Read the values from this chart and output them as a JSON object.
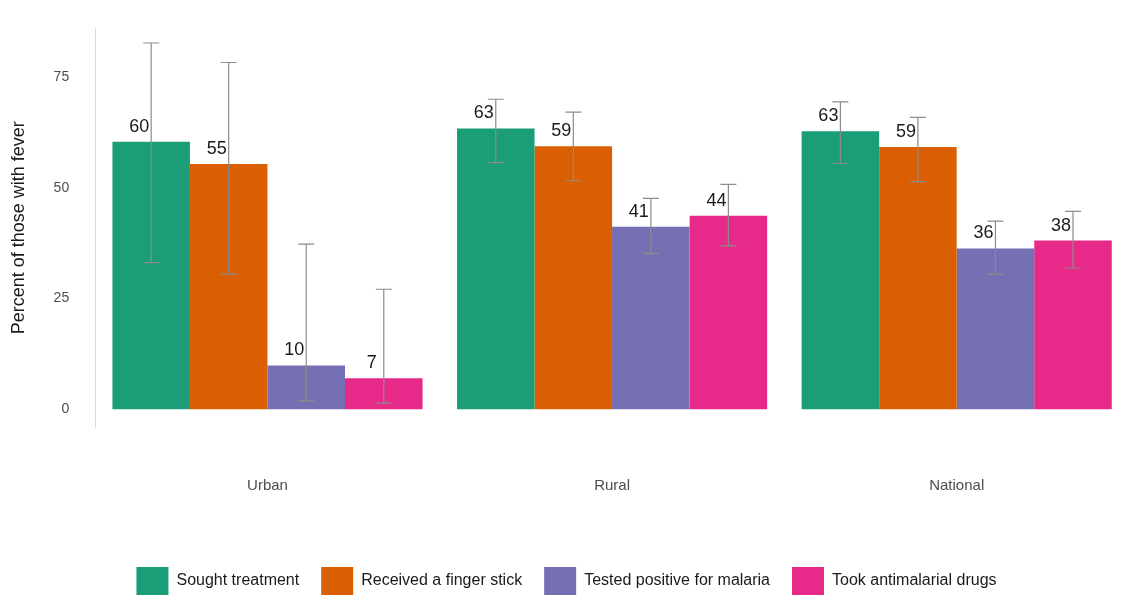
{
  "chart_data": {
    "type": "bar",
    "ylabel": "Percent of those with fever",
    "categories": [
      "Urban",
      "Rural",
      "National"
    ],
    "series": [
      {
        "name": "Sought treatment",
        "color": "#1b9e77",
        "values": [
          60.4,
          63.4,
          62.8
        ],
        "value_labels": [
          "60",
          "63",
          "63"
        ],
        "errors": [
          [
            33.1,
            82.7
          ],
          [
            55.7,
            70.0
          ],
          [
            55.5,
            69.4
          ]
        ]
      },
      {
        "name": "Received a finger stick",
        "color": "#d95f02",
        "values": [
          55.4,
          59.4,
          59.2
        ],
        "value_labels": [
          "55",
          "59",
          "59"
        ],
        "errors": [
          [
            30.5,
            78.3
          ],
          [
            51.6,
            67.1
          ],
          [
            51.4,
            65.9
          ]
        ]
      },
      {
        "name": "Tested positive for malaria",
        "color": "#7570b3",
        "values": [
          9.9,
          41.2,
          36.3
        ],
        "value_labels": [
          "10",
          "41",
          "36"
        ],
        "errors": [
          [
            1.9,
            37.3
          ],
          [
            35.2,
            47.6
          ],
          [
            30.5,
            42.5
          ]
        ]
      },
      {
        "name": "Took antimalarial drugs",
        "color": "#e7298a",
        "values": [
          7.0,
          43.7,
          38.1
        ],
        "value_labels": [
          "7",
          "44",
          "38"
        ],
        "errors": [
          [
            1.4,
            27.1
          ],
          [
            36.9,
            50.8
          ],
          [
            31.9,
            44.7
          ]
        ]
      }
    ],
    "ylim": [
      -4,
      86
    ],
    "yticks": [
      0,
      25,
      50,
      75
    ],
    "grid": false,
    "legend": "bottom"
  }
}
